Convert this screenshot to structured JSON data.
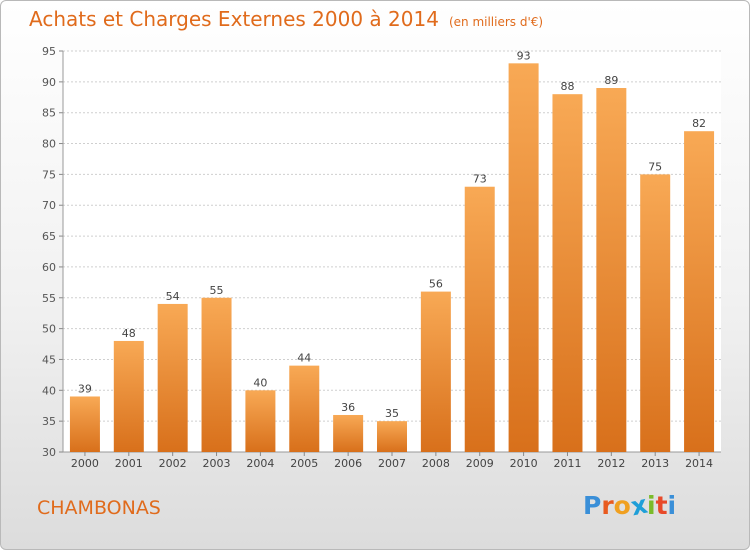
{
  "header": {
    "title": "Achats et Charges Externes 2000 à 2014",
    "subtitle": "(en milliers d'€)"
  },
  "footer": {
    "town": "CHAMBONAS",
    "logo_letters": [
      "P",
      "r",
      "o",
      "x",
      "i",
      "t",
      "i"
    ],
    "logo_colors": [
      "#3a8fd8",
      "#e85a1f",
      "#f0a020",
      "#1f9fd8",
      "#7bbb2a",
      "#e84a2a",
      "#3a8fd8"
    ]
  },
  "colors": {
    "bar_top": "#f8a955",
    "bar_bottom": "#d8701b",
    "title": "#e06b1c"
  },
  "chart_data": {
    "type": "bar",
    "title": "Achats et Charges Externes 2000 à 2014",
    "subtitle": "(en milliers d'€)",
    "categories": [
      "2000",
      "2001",
      "2002",
      "2003",
      "2004",
      "2005",
      "2006",
      "2007",
      "2008",
      "2009",
      "2010",
      "2011",
      "2012",
      "2013",
      "2014"
    ],
    "values": [
      39,
      48,
      54,
      55,
      40,
      44,
      36,
      35,
      56,
      73,
      93,
      88,
      89,
      75,
      82
    ],
    "data_labels": [
      "39",
      "48",
      "54",
      "55",
      "40",
      "44",
      "36",
      "35",
      "56",
      "73",
      "93",
      "88",
      "89",
      "75",
      "82"
    ],
    "yticks": [
      30,
      35,
      40,
      45,
      50,
      55,
      60,
      65,
      70,
      75,
      80,
      85,
      90,
      95
    ],
    "ytick_labels": [
      "30",
      "35",
      "40",
      "45",
      "50",
      "55",
      "60",
      "65",
      "70",
      "75",
      "80",
      "85",
      "90",
      "95"
    ],
    "ylim": [
      30,
      95
    ],
    "grid": true,
    "legend": "none"
  }
}
